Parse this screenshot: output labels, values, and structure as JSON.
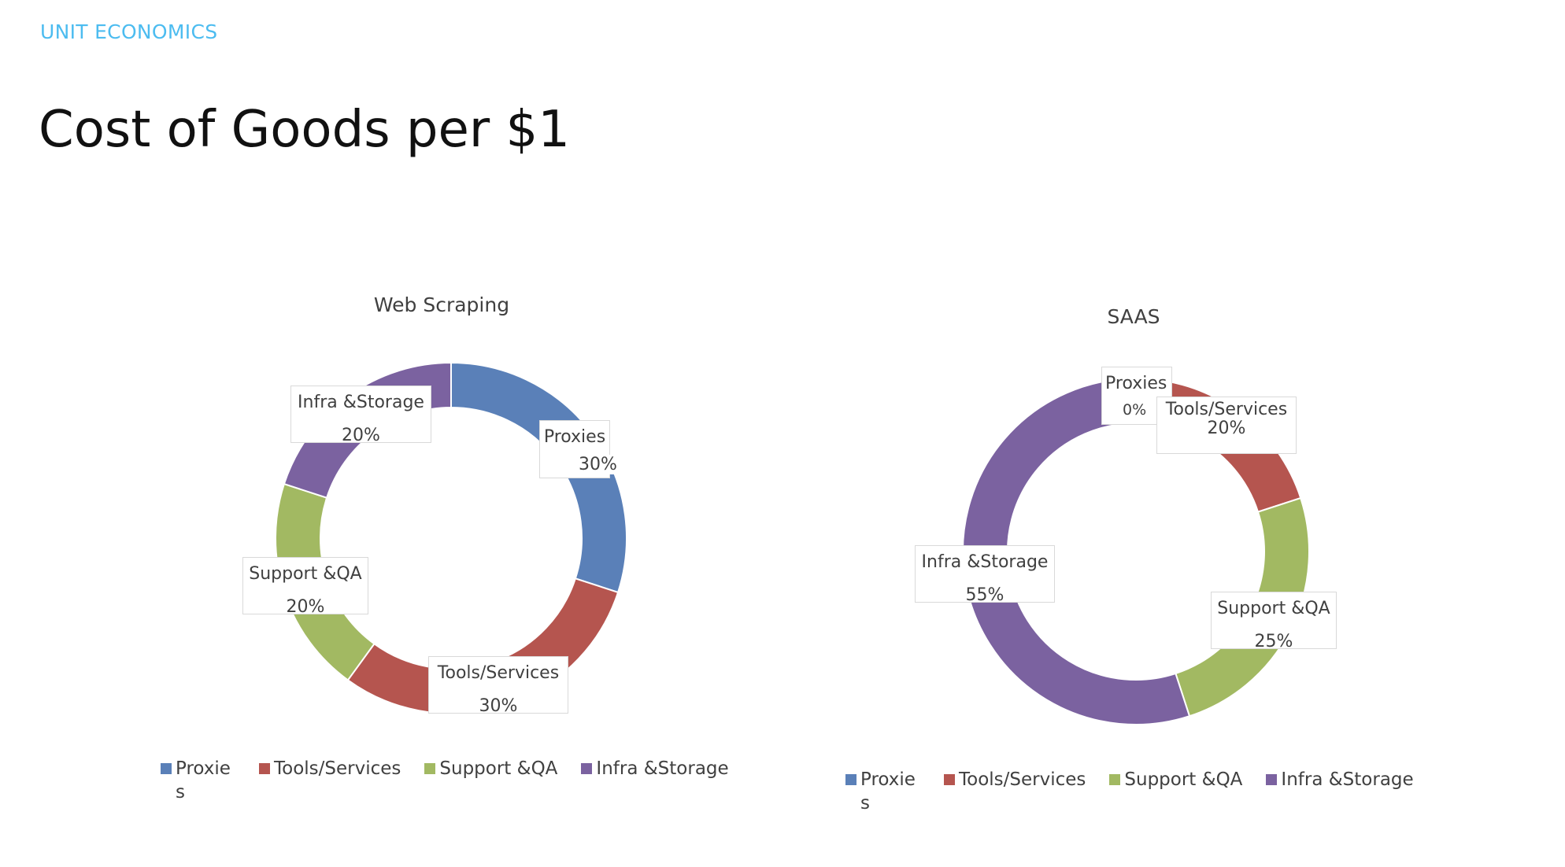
{
  "header": {
    "kicker": "UNIT ECONOMICS",
    "title": "Cost of Goods per $1"
  },
  "colors": {
    "Proxies": "#5a80b8",
    "Tools/Services": "#b5554f",
    "Support &QA": "#a2b962",
    "Infra &Storage": "#7b62a0"
  },
  "chart_data": [
    {
      "type": "pie",
      "donut": true,
      "title": "Web Scraping",
      "categories": [
        "Proxies",
        "Tools/Services",
        "Support &QA",
        "Infra &Storage"
      ],
      "values": [
        30,
        30,
        20,
        20
      ],
      "labels": [
        "30%",
        "30%",
        "20%",
        "20%"
      ],
      "legend": "bottom"
    },
    {
      "type": "pie",
      "donut": true,
      "title": "SAAS",
      "categories": [
        "Proxies",
        "Tools/Services",
        "Support &QA",
        "Infra &Storage"
      ],
      "values": [
        0,
        20,
        25,
        55
      ],
      "labels": [
        "0%",
        "20%",
        "25%",
        "55%"
      ],
      "legend": "bottom"
    }
  ]
}
